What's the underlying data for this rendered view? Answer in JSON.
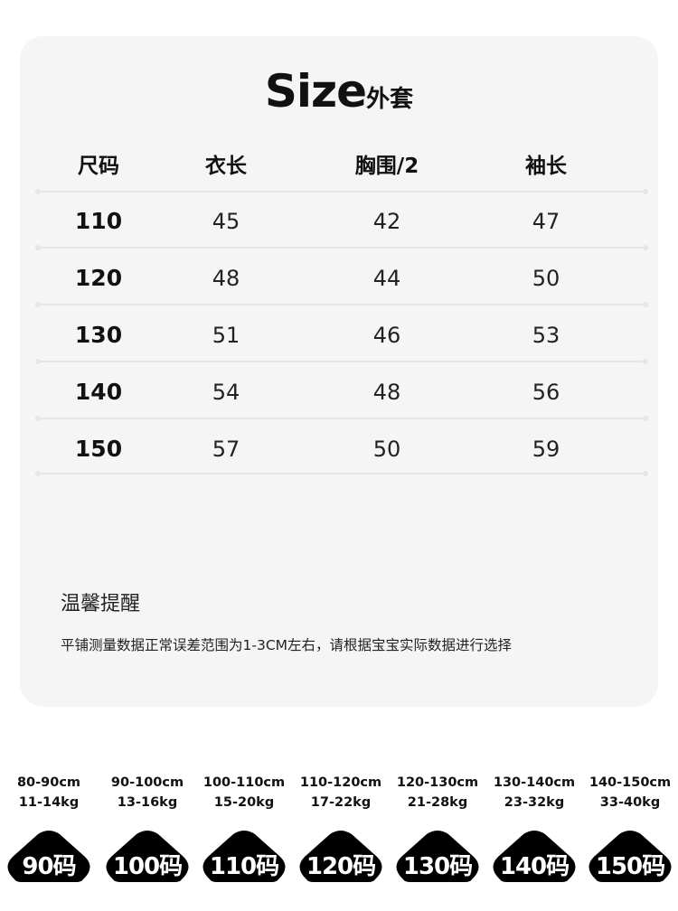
{
  "title": {
    "en": "Size",
    "cn": "外套"
  },
  "table": {
    "headers": [
      "尺码",
      "衣长",
      "胸围/2",
      "袖长"
    ],
    "rows": [
      [
        "110",
        "45",
        "42",
        "47"
      ],
      [
        "120",
        "48",
        "44",
        "50"
      ],
      [
        "130",
        "51",
        "46",
        "53"
      ],
      [
        "140",
        "54",
        "48",
        "56"
      ],
      [
        "150",
        "57",
        "50",
        "59"
      ]
    ]
  },
  "tip": {
    "heading": "温馨提醒",
    "body": "平铺测量数据正常误差范围为1-3CM左右，请根据宝宝实际数据进行选择"
  },
  "sizes": [
    {
      "height": "80-90cm",
      "weight": "11-14kg",
      "label": "90码"
    },
    {
      "height": "90-100cm",
      "weight": "13-16kg",
      "label": "100码"
    },
    {
      "height": "100-110cm",
      "weight": "15-20kg",
      "label": "110码"
    },
    {
      "height": "110-120cm",
      "weight": "17-22kg",
      "label": "120码"
    },
    {
      "height": "120-130cm",
      "weight": "21-28kg",
      "label": "130码"
    },
    {
      "height": "130-140cm",
      "weight": "23-32kg",
      "label": "140码"
    },
    {
      "height": "140-150cm",
      "weight": "33-40kg",
      "label": "150码"
    }
  ]
}
